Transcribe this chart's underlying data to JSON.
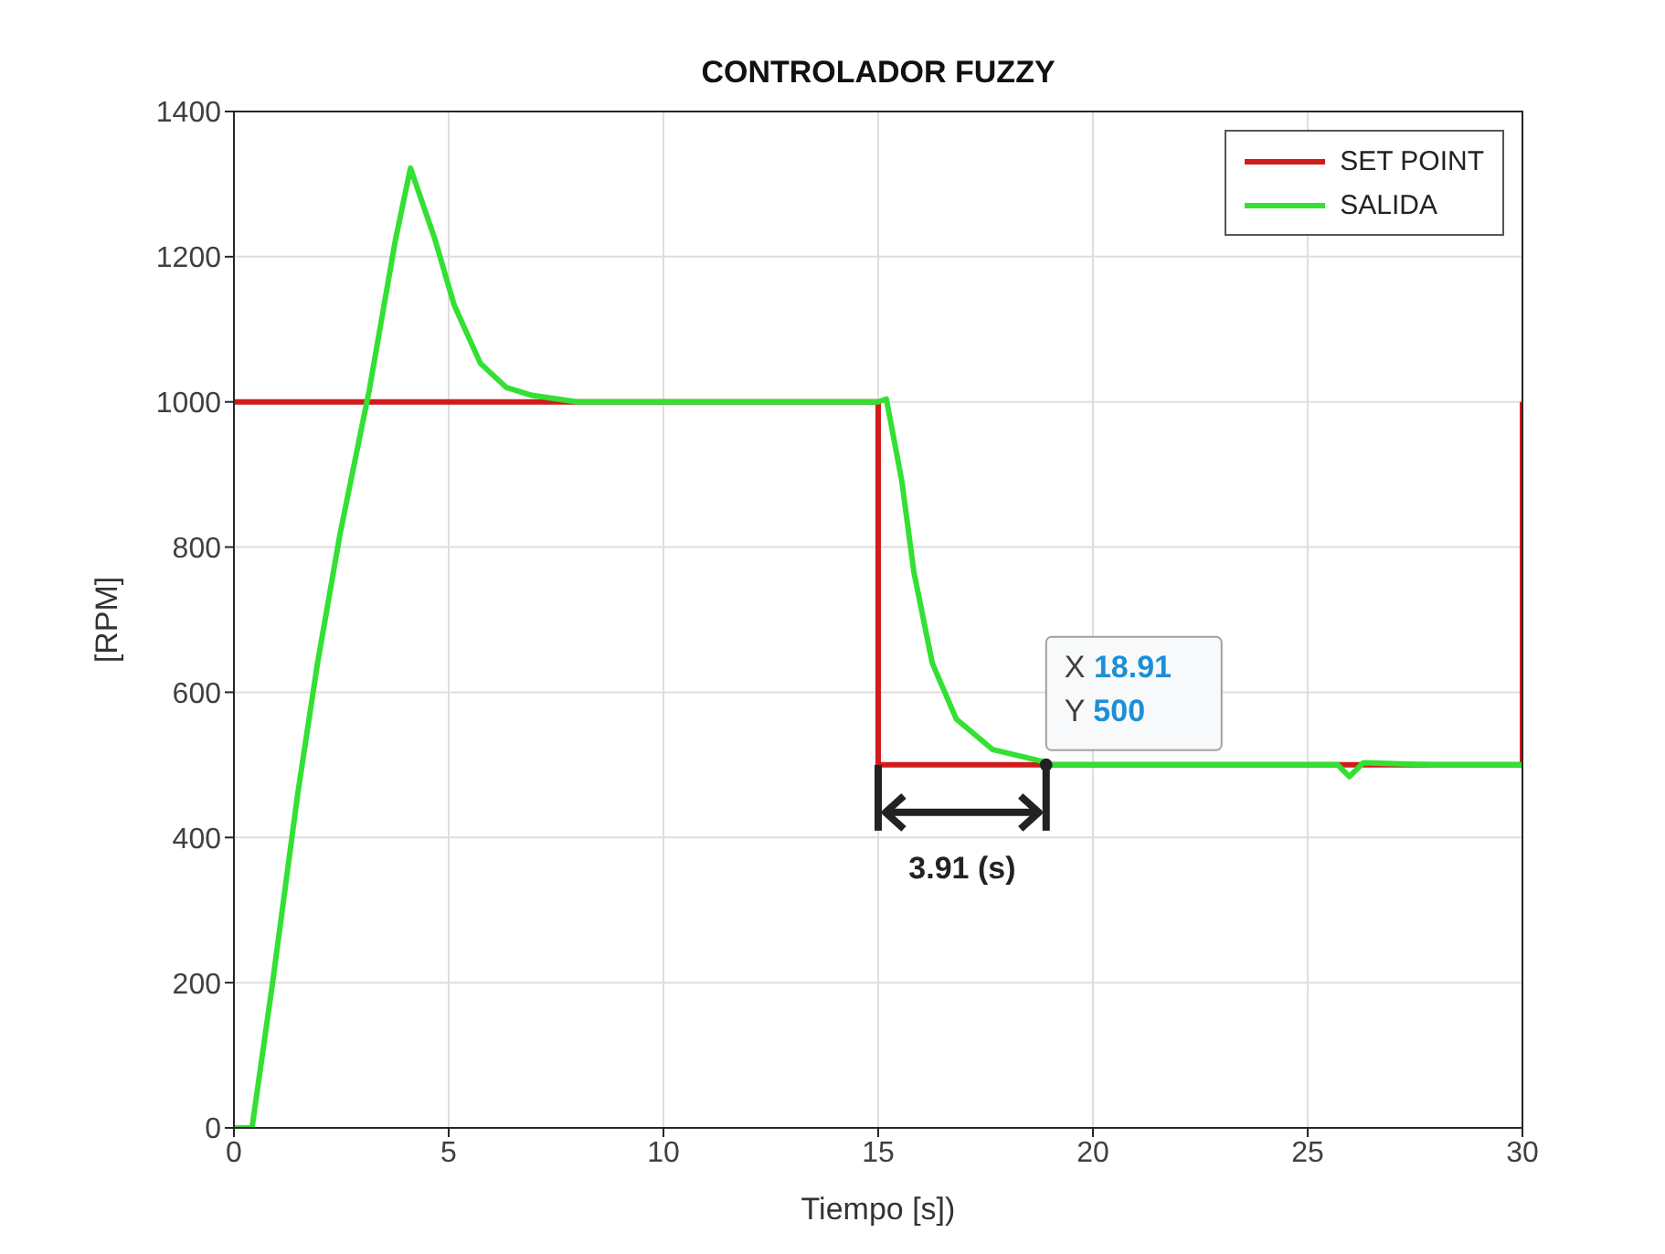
{
  "chart_data": {
    "type": "line",
    "title": "CONTROLADOR FUZZY",
    "xlabel": "Tiempo [s])",
    "ylabel": "[RPM]",
    "xlim": [
      0,
      30
    ],
    "xticks": [
      0,
      5,
      10,
      15,
      20,
      25,
      30
    ],
    "ylim": [
      0,
      1400
    ],
    "yticks": [
      0,
      200,
      400,
      600,
      800,
      1000,
      1200,
      1400
    ],
    "grid": true,
    "legend": "top right",
    "line_style": "solid",
    "marker": "none",
    "series": [
      {
        "name": "SET POINT",
        "color": "#d01c1c",
        "x": [
          0,
          15,
          15,
          30,
          30
        ],
        "values": [
          1000,
          1000,
          500,
          500,
          1000
        ]
      },
      {
        "name": "SALIDA",
        "color": "#33e033",
        "x": [
          0,
          0.42,
          0.9,
          1.48,
          1.94,
          2.47,
          3.15,
          3.76,
          4.11,
          4.68,
          5.13,
          5.74,
          6.34,
          6.94,
          8,
          10,
          12,
          14,
          15,
          15.19,
          15.55,
          15.83,
          16.26,
          16.82,
          17.67,
          18.81,
          18.91,
          20,
          22,
          24,
          25.7,
          25.97,
          26.3,
          28,
          30
        ],
        "values": [
          0,
          0,
          200,
          458,
          638,
          818,
          1016,
          1223,
          1322,
          1224,
          1133,
          1053,
          1020,
          1009,
          1000,
          1000,
          1000,
          1000,
          1000,
          1004,
          891,
          766,
          640,
          563,
          521,
          505,
          500,
          500,
          500,
          500,
          500,
          484,
          503,
          500,
          500
        ]
      }
    ],
    "annotations": [
      {
        "text": "X 18.91\nY 500",
        "x": 18.91,
        "y": 500
      },
      {
        "text": "3.91 (s)",
        "x": 16.955,
        "y": 500
      }
    ]
  }
}
